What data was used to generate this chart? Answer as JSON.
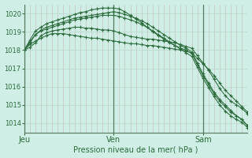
{
  "xlabel": "Pression niveau de la mer( hPa )",
  "bg_color": "#ceeee6",
  "grid_color_v": "#c8b8b8",
  "grid_color_h": "#b8d8cc",
  "line_color": "#2d6b3c",
  "ylim": [
    1013.5,
    1020.5
  ],
  "yticks": [
    1014,
    1015,
    1016,
    1017,
    1018,
    1019,
    1020
  ],
  "day_labels": [
    "Jeu",
    "Ven",
    "Sam"
  ],
  "day_positions": [
    0,
    16,
    32
  ],
  "xlim": [
    0,
    40
  ],
  "n_points": 41,
  "series": [
    [
      1018.0,
      1018.15,
      1018.4,
      1018.8,
      1018.95,
      1019.05,
      1019.1,
      1019.15,
      1019.2,
      1019.25,
      1019.25,
      1019.2,
      1019.2,
      1019.15,
      1019.1,
      1019.1,
      1019.05,
      1018.95,
      1018.85,
      1018.75,
      1018.7,
      1018.65,
      1018.6,
      1018.6,
      1018.55,
      1018.5,
      1018.45,
      1018.4,
      1018.3,
      1018.2,
      1018.1,
      1017.7,
      1017.3,
      1016.9,
      1016.4,
      1015.9,
      1015.5,
      1015.2,
      1015.0,
      1014.8,
      1014.5
    ],
    [
      1018.0,
      1018.4,
      1018.85,
      1019.1,
      1019.25,
      1019.35,
      1019.45,
      1019.55,
      1019.65,
      1019.75,
      1019.8,
      1019.85,
      1019.9,
      1019.95,
      1020.0,
      1020.05,
      1020.1,
      1020.05,
      1019.95,
      1019.85,
      1019.75,
      1019.6,
      1019.45,
      1019.25,
      1019.05,
      1018.85,
      1018.65,
      1018.45,
      1018.25,
      1018.1,
      1017.9,
      1017.3,
      1016.7,
      1016.2,
      1015.7,
      1015.3,
      1015.0,
      1014.7,
      1014.4,
      1014.2,
      1013.85
    ],
    [
      1018.0,
      1018.55,
      1019.05,
      1019.25,
      1019.45,
      1019.55,
      1019.65,
      1019.75,
      1019.85,
      1019.95,
      1020.05,
      1020.1,
      1020.2,
      1020.25,
      1020.3,
      1020.3,
      1020.3,
      1020.25,
      1020.1,
      1019.9,
      1019.7,
      1019.5,
      1019.25,
      1019.0,
      1018.8,
      1018.6,
      1018.4,
      1018.25,
      1018.1,
      1018.0,
      1017.8,
      1017.2,
      1016.6,
      1016.1,
      1015.6,
      1015.2,
      1014.9,
      1014.6,
      1014.4,
      1014.2,
      1013.85
    ],
    [
      1018.0,
      1018.45,
      1018.85,
      1019.05,
      1019.15,
      1019.25,
      1019.35,
      1019.45,
      1019.55,
      1019.65,
      1019.7,
      1019.75,
      1019.8,
      1019.85,
      1019.9,
      1019.9,
      1019.9,
      1019.85,
      1019.75,
      1019.65,
      1019.55,
      1019.4,
      1019.25,
      1019.05,
      1018.85,
      1018.65,
      1018.45,
      1018.25,
      1018.05,
      1017.85,
      1017.65,
      1017.05,
      1016.45,
      1015.95,
      1015.45,
      1015.0,
      1014.65,
      1014.4,
      1014.2,
      1014.05,
      1013.75
    ],
    [
      1018.0,
      1018.3,
      1018.5,
      1018.65,
      1018.8,
      1018.9,
      1018.9,
      1018.9,
      1018.85,
      1018.8,
      1018.75,
      1018.7,
      1018.65,
      1018.65,
      1018.6,
      1018.55,
      1018.5,
      1018.45,
      1018.4,
      1018.35,
      1018.35,
      1018.3,
      1018.25,
      1018.25,
      1018.2,
      1018.15,
      1018.1,
      1018.05,
      1018.0,
      1017.95,
      1017.85,
      1017.55,
      1017.25,
      1016.95,
      1016.6,
      1016.2,
      1015.8,
      1015.5,
      1015.2,
      1014.9,
      1014.6
    ]
  ]
}
